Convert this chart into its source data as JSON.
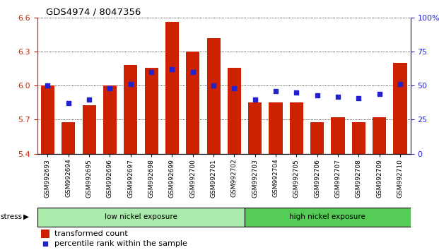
{
  "title": "GDS4974 / 8047356",
  "samples": [
    "GSM992693",
    "GSM992694",
    "GSM992695",
    "GSM992696",
    "GSM992697",
    "GSM992698",
    "GSM992699",
    "GSM992700",
    "GSM992701",
    "GSM992702",
    "GSM992703",
    "GSM992704",
    "GSM992705",
    "GSM992706",
    "GSM992707",
    "GSM992708",
    "GSM992709",
    "GSM992710"
  ],
  "bar_values": [
    6.0,
    5.68,
    5.83,
    6.0,
    6.18,
    6.16,
    6.56,
    6.3,
    6.42,
    6.16,
    5.85,
    5.85,
    5.85,
    5.68,
    5.72,
    5.68,
    5.72,
    6.2
  ],
  "percentile_values": [
    50,
    37,
    40,
    48,
    51,
    60,
    62,
    60,
    50,
    48,
    40,
    46,
    45,
    43,
    42,
    41,
    44,
    51
  ],
  "ylim_left": [
    5.4,
    6.6
  ],
  "ylim_right": [
    0,
    100
  ],
  "yticks_left": [
    5.4,
    5.7,
    6.0,
    6.3,
    6.6
  ],
  "yticks_right": [
    0,
    25,
    50,
    75,
    100
  ],
  "bar_color": "#cc2200",
  "dot_color": "#2222cc",
  "grid_color": "#000000",
  "axis_color_left": "#cc2200",
  "axis_color_right": "#2222cc",
  "group1_label": "low nickel exposure",
  "group2_label": "high nickel exposure",
  "group1_color": "#aaeaaa",
  "group2_color": "#55cc55",
  "group1_indices": [
    0,
    9
  ],
  "group2_indices": [
    10,
    17
  ],
  "stress_label": "stress",
  "legend_bar_label": "transformed count",
  "legend_dot_label": "percentile rank within the sample"
}
